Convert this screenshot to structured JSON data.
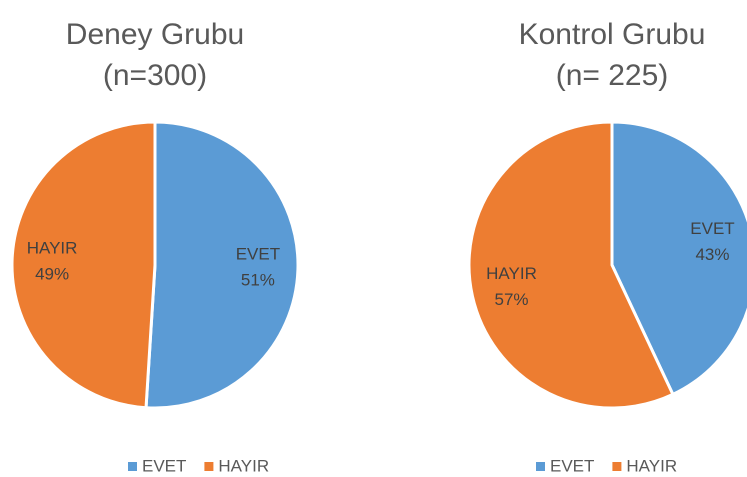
{
  "chart_data": [
    {
      "type": "pie",
      "title": "Deney Grubu",
      "subtitle": "(n=300)",
      "categories": [
        "EVET",
        "HAYIR"
      ],
      "values": [
        51,
        49
      ],
      "value_labels": [
        "51%",
        "49%"
      ],
      "colors": [
        "#5b9bd5",
        "#ed7d31"
      ],
      "legend": "bottom"
    },
    {
      "type": "pie",
      "title": "Kontrol Grubu",
      "subtitle": "(n= 225)",
      "categories": [
        "EVET",
        "HAYIR"
      ],
      "values": [
        43,
        57
      ],
      "value_labels": [
        "43%",
        "57%"
      ],
      "colors": [
        "#5b9bd5",
        "#ed7d31"
      ],
      "legend": "bottom"
    }
  ]
}
